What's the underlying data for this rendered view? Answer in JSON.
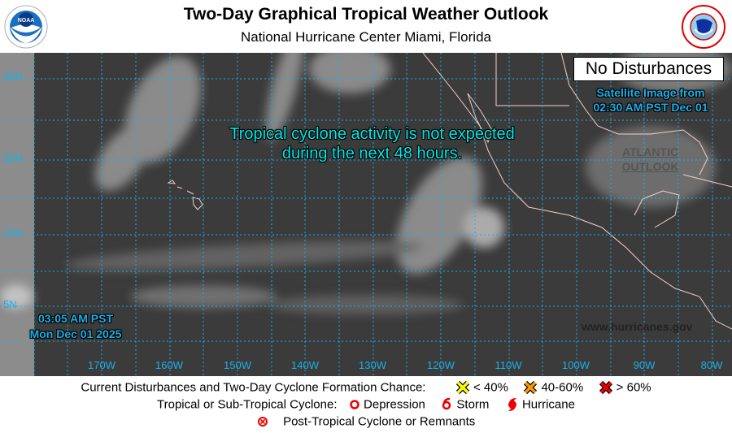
{
  "header": {
    "title": "Two-Day Graphical Tropical Weather Outlook",
    "subtitle": "National Hurricane Center  Miami, Florida",
    "left_logo": "NOAA",
    "right_logo": "NATIONAL WEATHER SERVICE"
  },
  "map": {
    "latitude_labels": [
      "35N",
      "25N",
      "15N",
      "5N"
    ],
    "longitude_labels": [
      "170W",
      "160W",
      "150W",
      "140W",
      "130W",
      "120W",
      "110W",
      "100W",
      "90W",
      "80W"
    ],
    "message_line1": "Tropical cyclone activity is not expected",
    "message_line2": "during the next 48 hours.",
    "status_box": "No Disturbances",
    "satellite_line1": "Satellite Image from",
    "satellite_line2": "02:30 AM PST Dec 01",
    "atlantic_line1": "ATLANTIC",
    "atlantic_line2": "OUTLOOK",
    "issued_time": "03:05 AM PST",
    "issued_date": "Mon Dec 01 2025",
    "website": "www.hurricanes.gov",
    "colors": {
      "grid": "#1ab0e8",
      "message": "#00e8e8",
      "coast": "#f5d0c8"
    }
  },
  "legend": {
    "row1_label": "Current Disturbances and Two-Day Cyclone Formation Chance:",
    "low": "< 40%",
    "medium": "40-60%",
    "high": "> 60%",
    "row2_label": "Tropical or Sub-Tropical Cyclone:",
    "depression": "Depression",
    "storm": "Storm",
    "hurricane": "Hurricane",
    "post_tropical": "Post-Tropical Cyclone or Remnants",
    "colors": {
      "low": "#ffff00",
      "medium": "#ff9900",
      "high": "#ee0000",
      "cyclone": "#ee0000"
    }
  }
}
